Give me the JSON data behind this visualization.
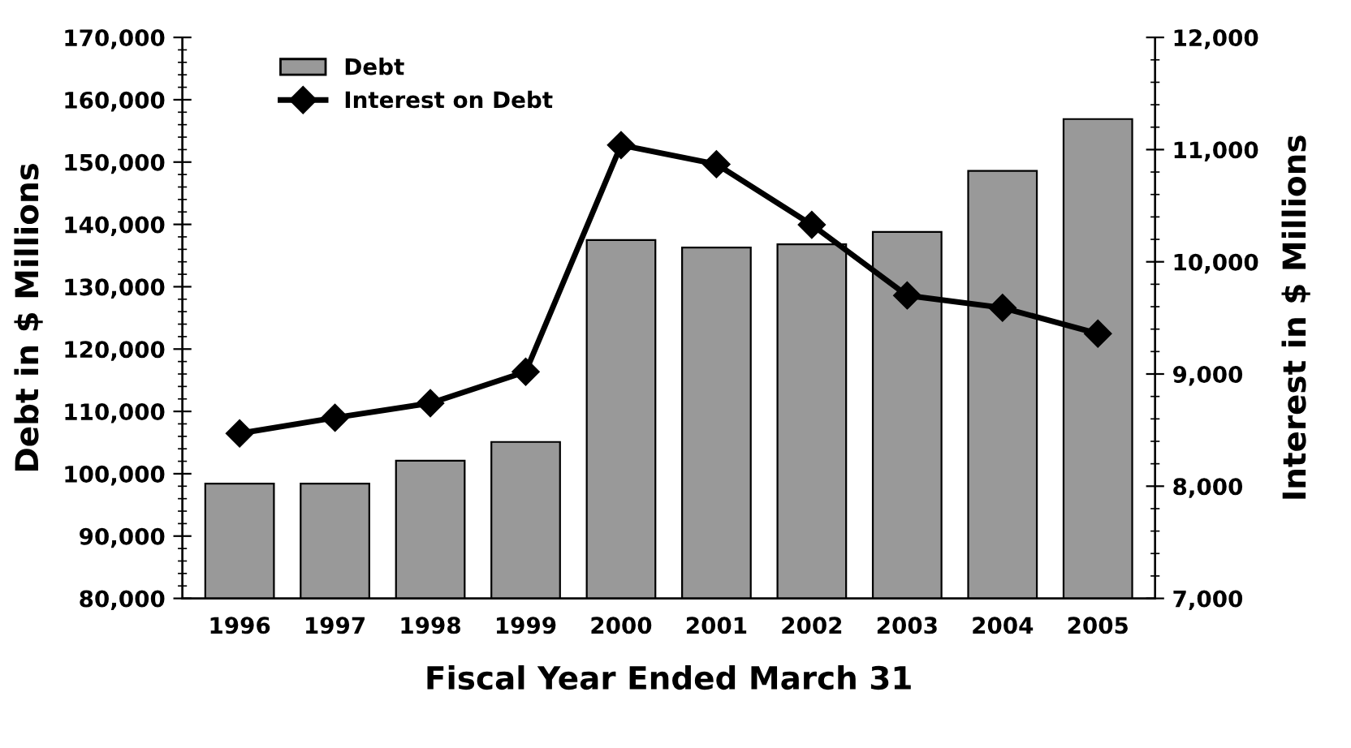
{
  "chart_data": {
    "type": "bar",
    "categories": [
      "1996",
      "1997",
      "1998",
      "1999",
      "2000",
      "2001",
      "2002",
      "2003",
      "2004",
      "2005"
    ],
    "xlabel": "Fiscal Year Ended March 31",
    "ylabel": "Debt in $ Millions",
    "y2label": "Interest in $ Millions",
    "series": [
      {
        "name": "Debt",
        "color": "#999999",
        "values": [
          98400,
          98400,
          102100,
          105100,
          137500,
          136300,
          136800,
          138800,
          148600,
          156900
        ]
      },
      {
        "name": "Interest on Debt",
        "type": "line",
        "axis": "y2",
        "color": "#000000",
        "marker": "diamond",
        "values": [
          8470,
          8610,
          8740,
          9020,
          11040,
          10870,
          10330,
          9700,
          9590,
          9360
        ]
      }
    ],
    "ylim": [
      80000,
      170000
    ],
    "yticks": [
      {
        "value": 80000,
        "label": "80,000"
      },
      {
        "value": 90000,
        "label": "90,000"
      },
      {
        "value": 100000,
        "label": "100,000"
      },
      {
        "value": 110000,
        "label": "110,000"
      },
      {
        "value": 120000,
        "label": "120,000"
      },
      {
        "value": 130000,
        "label": "130,000"
      },
      {
        "value": 140000,
        "label": "140,000"
      },
      {
        "value": 150000,
        "label": "150,000"
      },
      {
        "value": 160000,
        "label": "160,000"
      },
      {
        "value": 170000,
        "label": "170,000"
      }
    ],
    "y2lim": [
      7000,
      12000
    ],
    "y2ticks": [
      {
        "value": 7000,
        "label": "7,000"
      },
      {
        "value": 8000,
        "label": "8,000"
      },
      {
        "value": 9000,
        "label": "9,000"
      },
      {
        "value": 10000,
        "label": "10,000"
      },
      {
        "value": 11000,
        "label": "11,000"
      },
      {
        "value": 12000,
        "label": "12,000"
      }
    ],
    "legend": "top left",
    "grid": false
  }
}
